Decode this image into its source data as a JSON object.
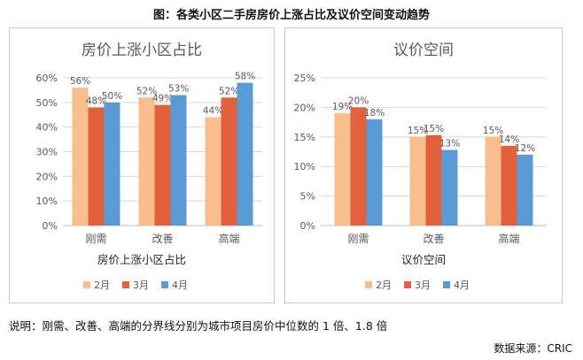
{
  "figure_title": "图：各类小区二手房房价上涨占比及议价空间变动趋势",
  "note": "说明：刚需、改善、高端的分界线分别为城市项目房价中位数的 1 倍、1.8 倍",
  "source": "数据来源：CRIC",
  "colors": {
    "s1": "#F8BE8C",
    "s2": "#E3603C",
    "s3": "#5B9BD5",
    "grid": "#d9d9d9",
    "axis": "#bfbfbf",
    "text": "#595959"
  },
  "chart_data": [
    {
      "type": "bar",
      "title": "房价上涨小区占比",
      "xlabel": "房价上涨小区占比",
      "categories": [
        "刚需",
        "改善",
        "高端"
      ],
      "ylim": [
        0,
        60
      ],
      "yticks": [
        "0%",
        "10%",
        "20%",
        "30%",
        "40%",
        "50%",
        "60%"
      ],
      "series": [
        {
          "name": "2月",
          "values": [
            56,
            52,
            44
          ],
          "labels": [
            "56%",
            "52%",
            "44%"
          ]
        },
        {
          "name": "3月",
          "values": [
            48,
            49,
            52
          ],
          "labels": [
            "48%",
            "49%",
            "52%"
          ]
        },
        {
          "name": "4月",
          "values": [
            50,
            53,
            58
          ],
          "labels": [
            "50%",
            "53%",
            "58%"
          ]
        }
      ],
      "legend": "bottom"
    },
    {
      "type": "bar",
      "title": "议价空间",
      "xlabel": "议价空间",
      "categories": [
        "刚需",
        "改善",
        "高端"
      ],
      "ylim": [
        0,
        25
      ],
      "yticks": [
        "0%",
        "5%",
        "10%",
        "15%",
        "20%",
        "25%"
      ],
      "series": [
        {
          "name": "2月",
          "values": [
            19,
            15,
            15
          ],
          "labels": [
            "19%",
            "15%",
            "15%"
          ]
        },
        {
          "name": "3月",
          "values": [
            20,
            15.3,
            13.5
          ],
          "labels": [
            "20%",
            "15%",
            "14%"
          ]
        },
        {
          "name": "4月",
          "values": [
            18,
            12.8,
            12
          ],
          "labels": [
            "18%",
            "13%",
            "12%"
          ]
        }
      ],
      "legend": "bottom"
    }
  ]
}
